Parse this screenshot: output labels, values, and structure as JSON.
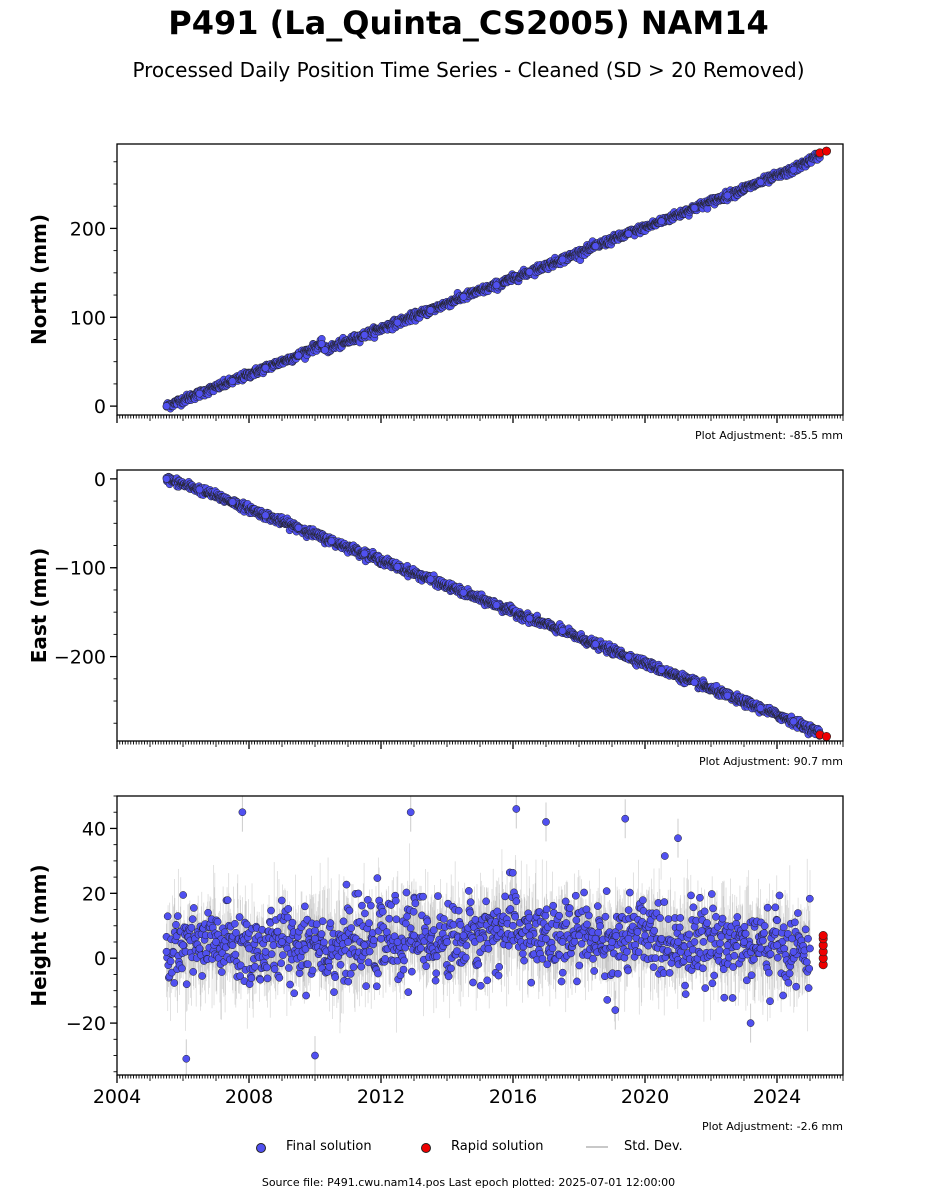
{
  "title": "P491 (La_Quinta_CS2005) NAM14",
  "subtitle": "Processed Daily Position Time Series - Cleaned (SD > 20 Removed)",
  "legend": {
    "final": "Final solution",
    "rapid": "Rapid solution",
    "std": "Std. Dev."
  },
  "footer": "Source file: P491.cwu.nam14.pos  Last epoch plotted: 2025-07-01 12:00:00",
  "colors": {
    "final": "#5050f0",
    "rapid": "#ee0000",
    "std": "#c8c8c8",
    "edge": "#222222"
  },
  "chart_data": [
    {
      "type": "scatter",
      "ylabel": "North (mm)",
      "adjustment": "Plot Adjustment: -85.5 mm",
      "xlim": [
        2004.0,
        2026.0
      ],
      "ylim": [
        -10,
        295
      ],
      "yticks": [
        0,
        100,
        200
      ],
      "xticks": [
        2004,
        2008,
        2012,
        2016,
        2020,
        2024
      ],
      "show_xtick_labels": false,
      "trend": {
        "start_year": 2005.5,
        "end_year": 2025.5,
        "start_value": 0,
        "end_value": 287
      },
      "offsets": [
        {
          "year": 2010.2,
          "value": -8
        }
      ],
      "final_series": {
        "name": "Final solution",
        "x": [
          2005.5,
          2006.5,
          2007.5,
          2008.5,
          2009.5,
          2010.2,
          2010.3,
          2011.5,
          2012.5,
          2013.5,
          2014.5,
          2015.5,
          2016.5,
          2017.5,
          2018.5,
          2019.5,
          2020.5,
          2021.5,
          2022.5,
          2023.5,
          2024.5,
          2025.3
        ],
        "y": [
          0,
          14,
          28,
          43,
          57,
          70,
          63,
          80,
          94,
          108,
          123,
          136,
          151,
          165,
          180,
          194,
          208,
          223,
          237,
          252,
          266,
          283
        ]
      },
      "rapid_series": {
        "name": "Rapid solution",
        "x": [
          2025.3,
          2025.5
        ],
        "y": [
          285,
          287
        ]
      }
    },
    {
      "type": "scatter",
      "ylabel": "East (mm)",
      "adjustment": "Plot Adjustment: 90.7 mm",
      "xlim": [
        2004.0,
        2026.0
      ],
      "ylim": [
        -295,
        10
      ],
      "yticks": [
        0,
        -100,
        -200
      ],
      "xticks": [
        2004,
        2008,
        2012,
        2016,
        2020,
        2024
      ],
      "show_xtick_labels": false,
      "trend": {
        "start_year": 2005.5,
        "end_year": 2025.5,
        "start_value": 0,
        "end_value": -290
      },
      "offsets": [],
      "final_series": {
        "name": "Final solution",
        "x": [
          2005.5,
          2006.5,
          2007.5,
          2008.5,
          2009.5,
          2010.5,
          2011.5,
          2012.5,
          2013.5,
          2014.5,
          2015.5,
          2016.5,
          2017.5,
          2018.5,
          2019.5,
          2020.5,
          2021.5,
          2022.5,
          2023.5,
          2024.5,
          2025.3
        ],
        "y": [
          0,
          -12,
          -26,
          -41,
          -55,
          -70,
          -84,
          -99,
          -113,
          -128,
          -142,
          -157,
          -171,
          -186,
          -200,
          -215,
          -229,
          -244,
          -258,
          -273,
          -286
        ]
      },
      "rapid_series": {
        "name": "Rapid solution",
        "x": [
          2025.3,
          2025.5
        ],
        "y": [
          -288,
          -290
        ]
      }
    },
    {
      "type": "scatter",
      "ylabel": "Height (mm)",
      "adjustment": "Plot Adjustment: -2.6 mm",
      "xlim": [
        2004.0,
        2026.0
      ],
      "ylim": [
        -36,
        50
      ],
      "yticks": [
        -20,
        0,
        20,
        40
      ],
      "xticks": [
        2004,
        2008,
        2012,
        2016,
        2020,
        2024
      ],
      "show_xtick_labels": true,
      "trend": {
        "start_year": 2005.5,
        "end_year": 2025.5,
        "start_value": 3,
        "end_value": 3
      },
      "offsets": [],
      "final_series": {
        "name": "Final solution",
        "x": [
          2005.5,
          2006.0,
          2006.5,
          2007.0,
          2007.5,
          2008.0,
          2008.5,
          2009.0,
          2009.5,
          2010.0,
          2010.5,
          2011.0,
          2011.5,
          2012.0,
          2012.5,
          2013.0,
          2013.5,
          2014.0,
          2014.5,
          2015.0,
          2015.5,
          2016.0,
          2016.5,
          2017.0,
          2017.5,
          2018.0,
          2018.5,
          2019.0,
          2019.5,
          2020.0,
          2020.5,
          2021.0,
          2021.5,
          2022.0,
          2022.5,
          2023.0,
          2023.5,
          2024.0,
          2024.5,
          2025.0
        ],
        "y": [
          2,
          4,
          3,
          5,
          4,
          3,
          2,
          5,
          4,
          6,
          3,
          5,
          4,
          6,
          5,
          7,
          6,
          5,
          7,
          6,
          9,
          10,
          7,
          6,
          5,
          7,
          6,
          5,
          6,
          7,
          6,
          5,
          5,
          6,
          4,
          5,
          3,
          4,
          2,
          3
        ]
      },
      "outliers": {
        "x": [
          2007.8,
          2012.9,
          2016.1,
          2017.0,
          2019.4,
          2021.0,
          2006.1,
          2010.0,
          2019.1,
          2023.2
        ],
        "y": [
          45,
          45,
          46,
          42,
          43,
          37,
          -31,
          -30,
          -16,
          -20
        ]
      },
      "rapid_series": {
        "name": "Rapid solution",
        "x": [
          2025.4,
          2025.4,
          2025.4,
          2025.4,
          2025.4,
          2025.4
        ],
        "y": [
          -2,
          0,
          2,
          4,
          6,
          7
        ]
      }
    }
  ]
}
